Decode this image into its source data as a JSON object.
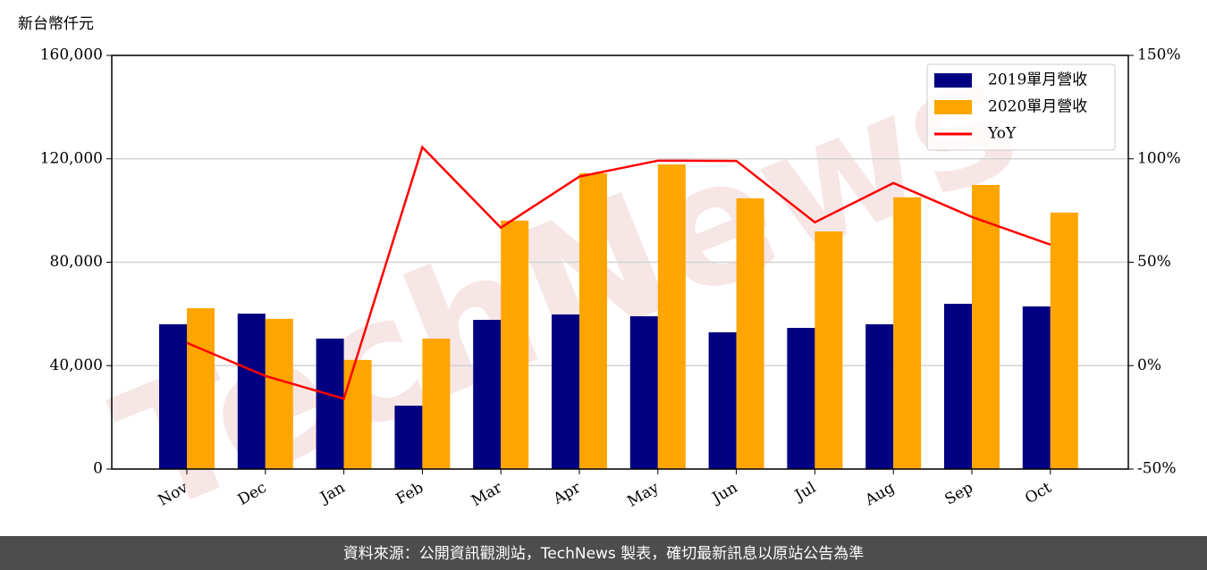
{
  "chart_data": {
    "type": "bar",
    "ylabel": "新台幣仟元",
    "watermark": "TechNews",
    "categories": [
      "Nov",
      "Dec",
      "Jan",
      "Feb",
      "Mar",
      "Apr",
      "May",
      "Jun",
      "Jul",
      "Aug",
      "Sep",
      "Oct"
    ],
    "series": [
      {
        "name": "2019單月營收",
        "type": "bar",
        "color": "#000080",
        "values": [
          56000,
          60100,
          50450,
          24500,
          57700,
          59800,
          59100,
          52900,
          54600,
          56000,
          63900,
          62900
        ]
      },
      {
        "name": "2020單月營收",
        "type": "bar",
        "color": "#ffa500",
        "values": [
          62200,
          58100,
          42200,
          50450,
          96100,
          114400,
          117800,
          104700,
          91900,
          105100,
          109900,
          99200
        ]
      },
      {
        "name": "YoY",
        "type": "line",
        "color": "#ff0000",
        "axis": "y2",
        "values": [
          11,
          -5,
          -16,
          105.6,
          66.7,
          91.4,
          99.1,
          99,
          69.3,
          88.3,
          71.9,
          58.5
        ]
      }
    ],
    "ylim": [
      0,
      160000
    ],
    "yticks": [
      0,
      {
        "value": 40000,
        "label": "40,000"
      },
      {
        "value": 80000,
        "label": "80,000"
      },
      {
        "value": 120000,
        "label": "120,000"
      },
      {
        "value": 160000,
        "label": "160,000"
      }
    ],
    "y2lim": [
      -50,
      150
    ],
    "y2ticks": [
      {
        "value": -50,
        "label": "-50%"
      },
      {
        "value": 0,
        "label": "0%"
      },
      {
        "value": 50,
        "label": "50%"
      },
      {
        "value": 100,
        "label": "100%"
      },
      {
        "value": 150,
        "label": "150%"
      }
    ],
    "grid": true,
    "legend": "upper right"
  },
  "footer": "資料來源：公開資訊觀測站，TechNews 製表，確切最新訊息以原站公告為準"
}
